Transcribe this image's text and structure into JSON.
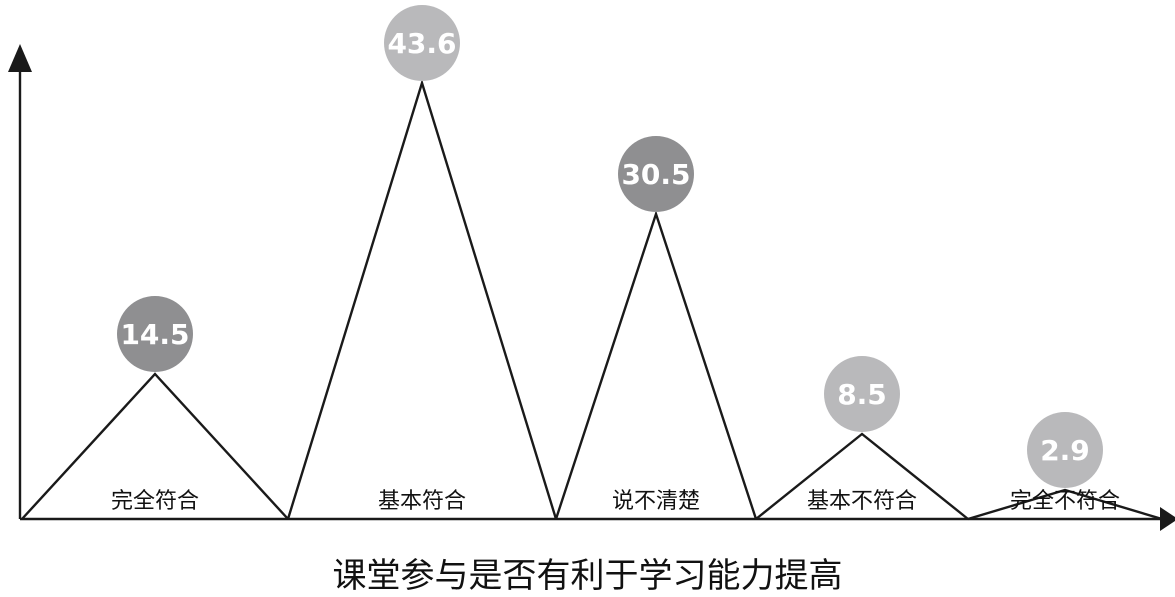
{
  "title": "课堂参与是否有利于学习能力提高",
  "chart_data": {
    "type": "area",
    "title": "课堂参与是否有利于学习能力提高",
    "categories": [
      "完全符合",
      "基本符合",
      "说不清楚",
      "基本不符合",
      "完全不符合"
    ],
    "values": [
      14.5,
      43.6,
      30.5,
      8.5,
      2.9
    ],
    "value_labels": [
      "14.5",
      "43.6",
      "30.5",
      "8.5",
      "2.9"
    ],
    "xlabel": "",
    "ylabel": "",
    "grid": false,
    "legend": "none",
    "colors": {
      "line": "#1a1a1a",
      "circle_dark": "#8f8f91",
      "circle_light": "#b9b9bb",
      "label_text": "#ffffff"
    },
    "circle_shades": [
      "dark",
      "light",
      "dark",
      "light",
      "light"
    ]
  }
}
